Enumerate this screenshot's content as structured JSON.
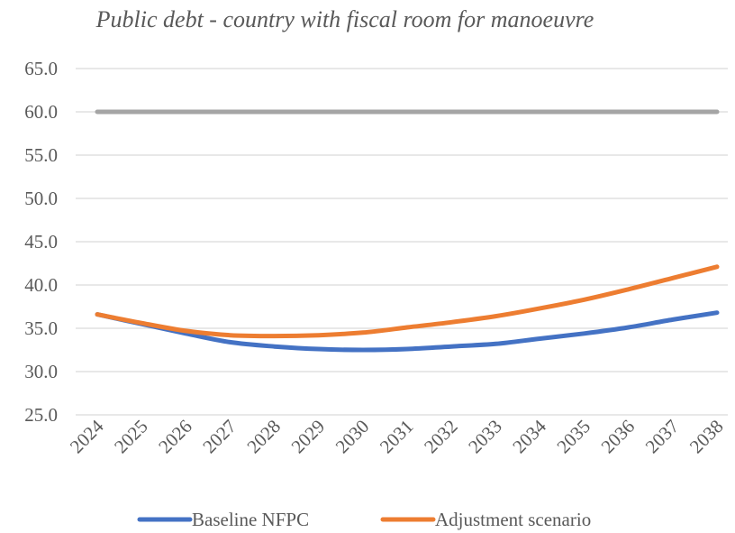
{
  "chart_data": {
    "type": "line",
    "title": "Public debt - country with fiscal room for manoeuvre",
    "xlabel": "",
    "ylabel": "",
    "ylim": [
      25,
      65
    ],
    "yticks": [
      "25.0",
      "30.0",
      "35.0",
      "40.0",
      "45.0",
      "50.0",
      "55.0",
      "60.0",
      "65.0"
    ],
    "categories": [
      "2024",
      "2025",
      "2026",
      "2027",
      "2028",
      "2029",
      "2030",
      "2031",
      "2032",
      "2033",
      "2034",
      "2035",
      "2036",
      "2037",
      "2038"
    ],
    "grid": true,
    "legend_position": "bottom",
    "series": [
      {
        "name": "",
        "color": "#a5a5a5",
        "values": [
          60,
          60,
          60,
          60,
          60,
          60,
          60,
          60,
          60,
          60,
          60,
          60,
          60,
          60,
          60
        ]
      },
      {
        "name": "Baseline NFPC",
        "color": "#4472c4",
        "values": [
          36.6,
          35.5,
          34.4,
          33.4,
          32.9,
          32.6,
          32.5,
          32.6,
          32.9,
          33.2,
          33.8,
          34.4,
          35.1,
          36.0,
          36.8
        ]
      },
      {
        "name": "Adjustment scenario",
        "color": "#ed7d31",
        "values": [
          36.6,
          35.6,
          34.7,
          34.2,
          34.1,
          34.2,
          34.5,
          35.1,
          35.7,
          36.4,
          37.3,
          38.3,
          39.5,
          40.8,
          42.1
        ]
      }
    ]
  }
}
